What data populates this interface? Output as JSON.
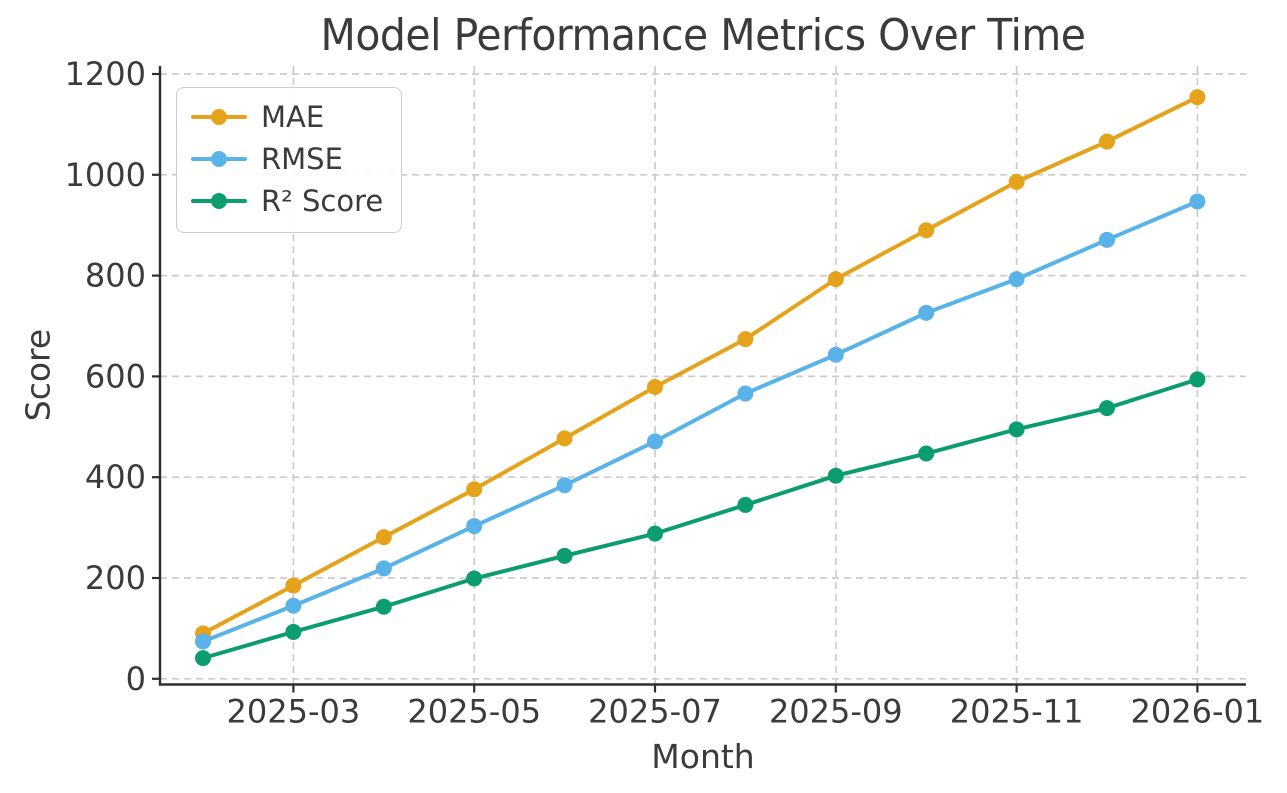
{
  "title": "Model Performance Metrics Over Time",
  "chart_data": {
    "type": "line",
    "title": "Model Performance Metrics Over Time",
    "xlabel": "Month",
    "ylabel": "Score",
    "x": [
      "2025-02",
      "2025-03",
      "2025-04",
      "2025-05",
      "2025-06",
      "2025-07",
      "2025-08",
      "2025-09",
      "2025-10",
      "2025-11",
      "2025-12",
      "2026-01"
    ],
    "x_tick_labels": [
      "2025-03",
      "2025-05",
      "2025-07",
      "2025-09",
      "2025-11",
      "2026-01"
    ],
    "x_tick_indices": [
      1,
      3,
      5,
      7,
      9,
      11
    ],
    "y_ticks": [
      0,
      200,
      400,
      600,
      800,
      1000,
      1200
    ],
    "ylim": [
      0,
      1200
    ],
    "grid": true,
    "grid_style": "dashed",
    "legend_position": "upper left",
    "series": [
      {
        "name": "MAE",
        "color": "#E5A21B",
        "values": [
          90,
          185,
          281,
          376,
          477,
          579,
          674,
          793,
          890,
          986,
          1066,
          1154
        ]
      },
      {
        "name": "RMSE",
        "color": "#59B3E8",
        "values": [
          74,
          145,
          219,
          303,
          384,
          471,
          566,
          643,
          726,
          793,
          871,
          947
        ]
      },
      {
        "name": "R² Score",
        "color": "#0C9D6E",
        "values": [
          41,
          93,
          143,
          199,
          244,
          288,
          345,
          403,
          447,
          495,
          537,
          594
        ]
      }
    ],
    "colors": {
      "text": "#3b3b3b",
      "spine": "#2e2e2e",
      "grid": "#cbcbcb",
      "background": "#ffffff"
    }
  }
}
